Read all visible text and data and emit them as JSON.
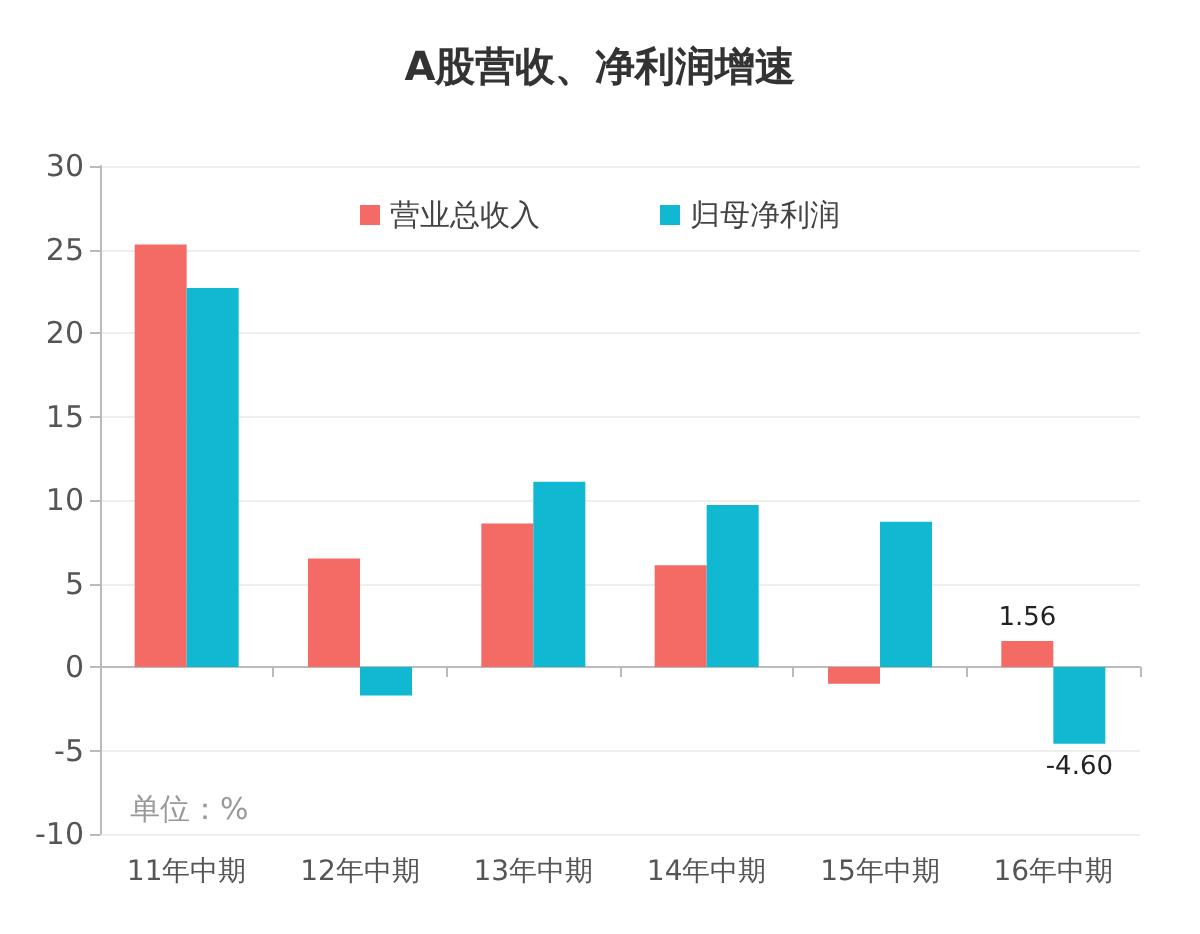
{
  "chart_data": {
    "type": "bar",
    "title": "A股营收、净利润增速",
    "categories": [
      "11年中期",
      "12年中期",
      "13年中期",
      "14年中期",
      "15年中期",
      "16年中期"
    ],
    "series": [
      {
        "name": "营业总收入",
        "color": "#f46a64",
        "values": [
          25.3,
          6.5,
          8.6,
          6.1,
          -1.0,
          1.56
        ],
        "value_labels": [
          null,
          null,
          null,
          null,
          null,
          "1.56"
        ]
      },
      {
        "name": "归母净利润",
        "color": "#10b8d2",
        "values": [
          22.7,
          -1.7,
          11.1,
          9.7,
          8.7,
          -4.6
        ],
        "value_labels": [
          null,
          null,
          null,
          null,
          null,
          "-4.60"
        ]
      }
    ],
    "ylim": [
      -10,
      30
    ],
    "yticks": [
      -10,
      -5,
      0,
      5,
      10,
      15,
      20,
      25,
      30
    ],
    "grid": "y",
    "legend": "top",
    "annotations": [
      "单位：%"
    ]
  }
}
